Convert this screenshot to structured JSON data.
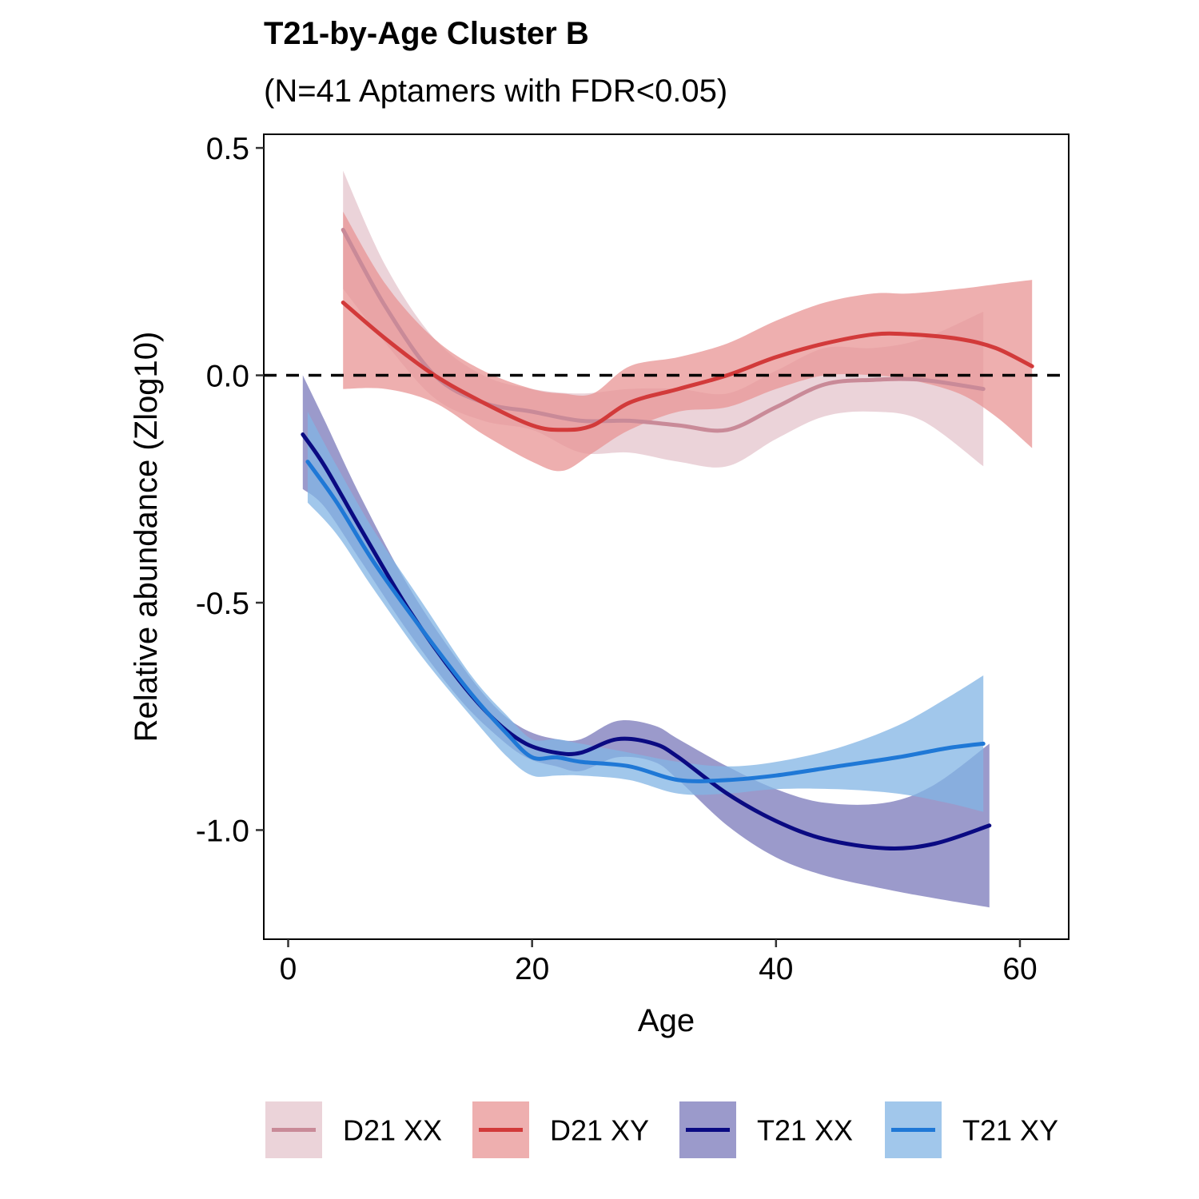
{
  "header": {
    "title": "T21-by-Age Cluster B",
    "subtitle": "(N=41 Aptamers with FDR<0.05)"
  },
  "chart_data": {
    "type": "line",
    "title": "T21-by-Age Cluster B",
    "subtitle": "(N=41 Aptamers with FDR<0.05)",
    "xlabel": "Age",
    "ylabel": "Relative abundance (Zlog10)",
    "xlim": [
      -2,
      64
    ],
    "ylim": [
      -1.24,
      0.53
    ],
    "x_ticks": [
      0,
      20,
      40,
      60
    ],
    "x_tick_labels": [
      "0",
      "20",
      "40",
      "60"
    ],
    "y_ticks": [
      0.5,
      0.0,
      -0.5,
      -1.0
    ],
    "y_tick_labels": [
      "0.5",
      "0.0",
      "-0.5",
      "-1.0"
    ],
    "reference_line": {
      "y": 0,
      "style": "dashed",
      "color": "#000000"
    },
    "legend_position": "bottom",
    "grid": false,
    "series": [
      {
        "name": "D21 XX",
        "line_color": "#c98a98",
        "band_color": "#e8cbd2",
        "band_opacity": 0.85,
        "x": [
          4.5,
          8,
          12,
          16,
          20,
          24,
          28,
          32,
          36,
          40,
          44,
          48,
          52,
          57
        ],
        "y": [
          0.32,
          0.15,
          0.0,
          -0.06,
          -0.08,
          -0.1,
          -0.1,
          -0.11,
          -0.12,
          -0.07,
          -0.02,
          -0.01,
          -0.01,
          -0.03
        ],
        "lower": [
          0.19,
          0.07,
          -0.05,
          -0.1,
          -0.12,
          -0.17,
          -0.17,
          -0.19,
          -0.2,
          -0.14,
          -0.09,
          -0.08,
          -0.1,
          -0.2
        ],
        "upper": [
          0.45,
          0.24,
          0.08,
          0.0,
          -0.03,
          -0.04,
          -0.03,
          -0.03,
          -0.04,
          0.01,
          0.06,
          0.06,
          0.08,
          0.14
        ]
      },
      {
        "name": "D21 XY",
        "line_color": "#d23a3a",
        "band_color": "#e89494",
        "band_opacity": 0.75,
        "x": [
          4.5,
          8,
          12,
          16,
          20,
          22.5,
          25,
          28,
          32,
          36,
          40,
          44,
          48,
          51,
          55,
          58,
          61
        ],
        "y": [
          0.16,
          0.08,
          0.0,
          -0.06,
          -0.11,
          -0.12,
          -0.11,
          -0.06,
          -0.03,
          0.0,
          0.04,
          0.07,
          0.09,
          0.09,
          0.08,
          0.06,
          0.02
        ],
        "lower": [
          -0.03,
          -0.03,
          -0.06,
          -0.13,
          -0.19,
          -0.21,
          -0.17,
          -0.12,
          -0.08,
          -0.07,
          -0.03,
          0.0,
          0.0,
          -0.01,
          -0.04,
          -0.09,
          -0.16
        ],
        "upper": [
          0.36,
          0.2,
          0.08,
          0.01,
          -0.03,
          -0.04,
          -0.04,
          0.02,
          0.04,
          0.07,
          0.12,
          0.16,
          0.18,
          0.18,
          0.19,
          0.2,
          0.21
        ]
      },
      {
        "name": "T21 XX",
        "line_color": "#0a0a82",
        "band_color": "#7a78ba",
        "band_opacity": 0.75,
        "x": [
          1.2,
          3,
          6,
          10,
          14,
          17,
          19.5,
          22,
          24,
          27,
          30,
          32,
          36,
          40,
          44,
          49,
          53,
          57.5
        ],
        "y": [
          -0.13,
          -0.2,
          -0.34,
          -0.52,
          -0.67,
          -0.76,
          -0.81,
          -0.83,
          -0.83,
          -0.8,
          -0.81,
          -0.84,
          -0.92,
          -0.98,
          -1.02,
          -1.04,
          -1.03,
          -0.99
        ],
        "lower": [
          -0.25,
          -0.29,
          -0.41,
          -0.57,
          -0.71,
          -0.79,
          -0.84,
          -0.86,
          -0.87,
          -0.84,
          -0.85,
          -0.89,
          -0.99,
          -1.06,
          -1.1,
          -1.13,
          -1.15,
          -1.17
        ],
        "upper": [
          0.0,
          -0.1,
          -0.27,
          -0.47,
          -0.63,
          -0.73,
          -0.78,
          -0.8,
          -0.8,
          -0.76,
          -0.77,
          -0.8,
          -0.86,
          -0.91,
          -0.94,
          -0.94,
          -0.9,
          -0.81
        ]
      },
      {
        "name": "T21 XY",
        "line_color": "#1f78d6",
        "band_color": "#82b4e4",
        "band_opacity": 0.75,
        "x": [
          1.6,
          4,
          7,
          11,
          15,
          18,
          20,
          22,
          24,
          28,
          32,
          36,
          40,
          45,
          50,
          54,
          57
        ],
        "y": [
          -0.19,
          -0.28,
          -0.41,
          -0.56,
          -0.7,
          -0.79,
          -0.84,
          -0.84,
          -0.85,
          -0.86,
          -0.89,
          -0.89,
          -0.88,
          -0.86,
          -0.84,
          -0.82,
          -0.81
        ],
        "lower": [
          -0.28,
          -0.35,
          -0.47,
          -0.62,
          -0.75,
          -0.84,
          -0.88,
          -0.88,
          -0.88,
          -0.89,
          -0.92,
          -0.92,
          -0.91,
          -0.91,
          -0.92,
          -0.94,
          -0.96
        ],
        "upper": [
          -0.08,
          -0.2,
          -0.34,
          -0.5,
          -0.66,
          -0.75,
          -0.8,
          -0.8,
          -0.81,
          -0.83,
          -0.85,
          -0.86,
          -0.85,
          -0.82,
          -0.77,
          -0.71,
          -0.66
        ]
      }
    ]
  }
}
